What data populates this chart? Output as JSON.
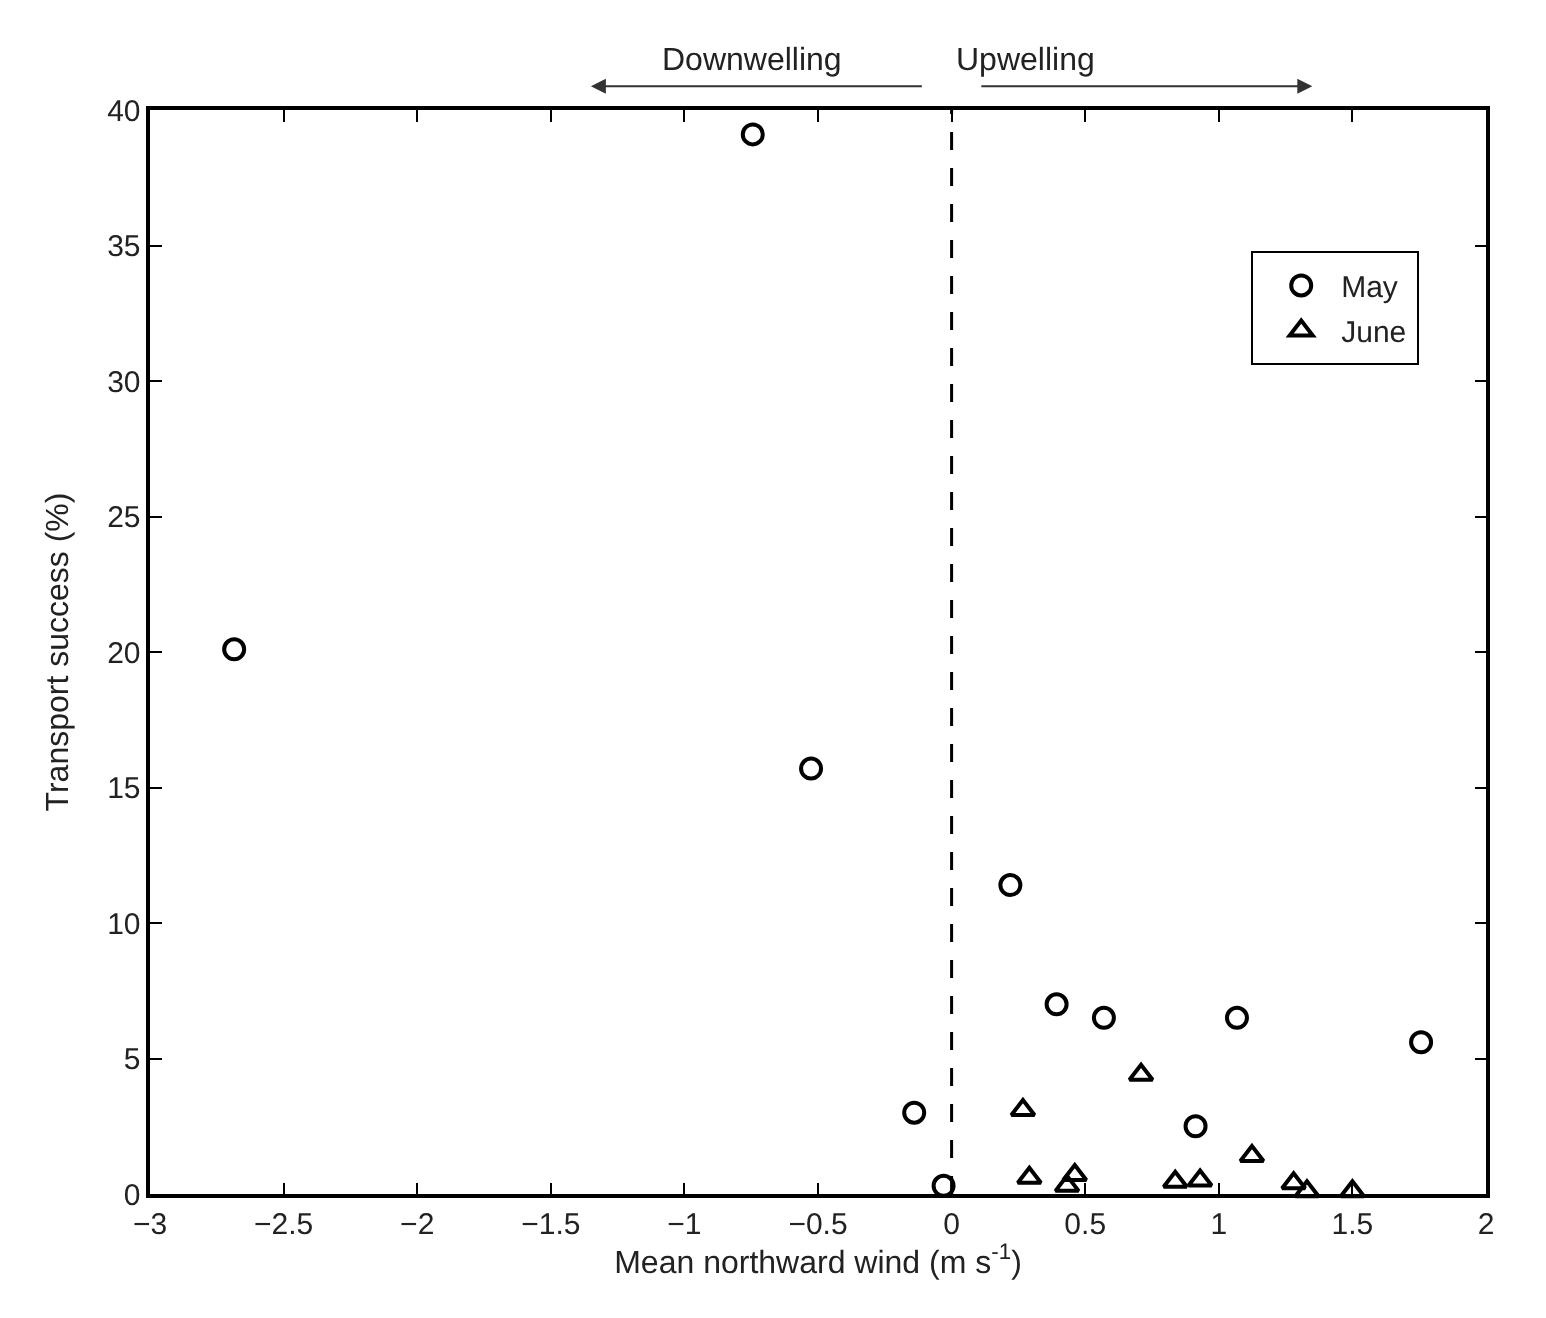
{
  "chart_data": {
    "type": "scatter",
    "xlabel": "Mean northward wind (m s$^{-1}$)",
    "ylabel": "Transport success (%)",
    "series": [
      {
        "name": "May",
        "color": "#000000",
        "marker": "circle",
        "x": [
          -2.685,
          -0.744,
          -0.526,
          -0.14,
          -0.03,
          0.22,
          0.393,
          0.57,
          0.913,
          1.068,
          1.757
        ],
        "values": [
          20.1,
          39.1,
          15.7,
          3.0,
          0.3,
          11.4,
          7.0,
          6.5,
          2.5,
          6.5,
          5.6
        ]
      },
      {
        "name": "June",
        "color": "#000000",
        "marker": "triangle",
        "x": [
          0.267,
          0.291,
          0.432,
          0.461,
          0.709,
          0.837,
          0.93,
          1.124,
          1.28,
          1.33,
          1.5
        ],
        "values": [
          3.1,
          0.6,
          0.3,
          0.7,
          4.4,
          0.45,
          0.5,
          1.4,
          0.4,
          0.1,
          0.1
        ]
      }
    ],
    "xlim": [
      -3,
      2
    ],
    "xticks": [
      {
        "value": -3,
        "label": "−3"
      },
      {
        "value": -2.5,
        "label": "−2.5"
      },
      {
        "value": -2,
        "label": "−2"
      },
      {
        "value": -1.5,
        "label": "−1.5"
      },
      {
        "value": -1,
        "label": "−1"
      },
      {
        "value": -0.5,
        "label": "−0.5"
      },
      0,
      0.5,
      1,
      1.5,
      2
    ],
    "ylim": [
      0,
      40
    ],
    "yticks": [
      0,
      5,
      10,
      15,
      20,
      25,
      30,
      35,
      40
    ],
    "ref_lines": [
      {
        "axis": "x",
        "value": 0,
        "line_style": "dashed",
        "color": "#000000"
      }
    ],
    "annotations": [
      "Downwelling",
      "Upwelling"
    ],
    "legend": "top right"
  }
}
